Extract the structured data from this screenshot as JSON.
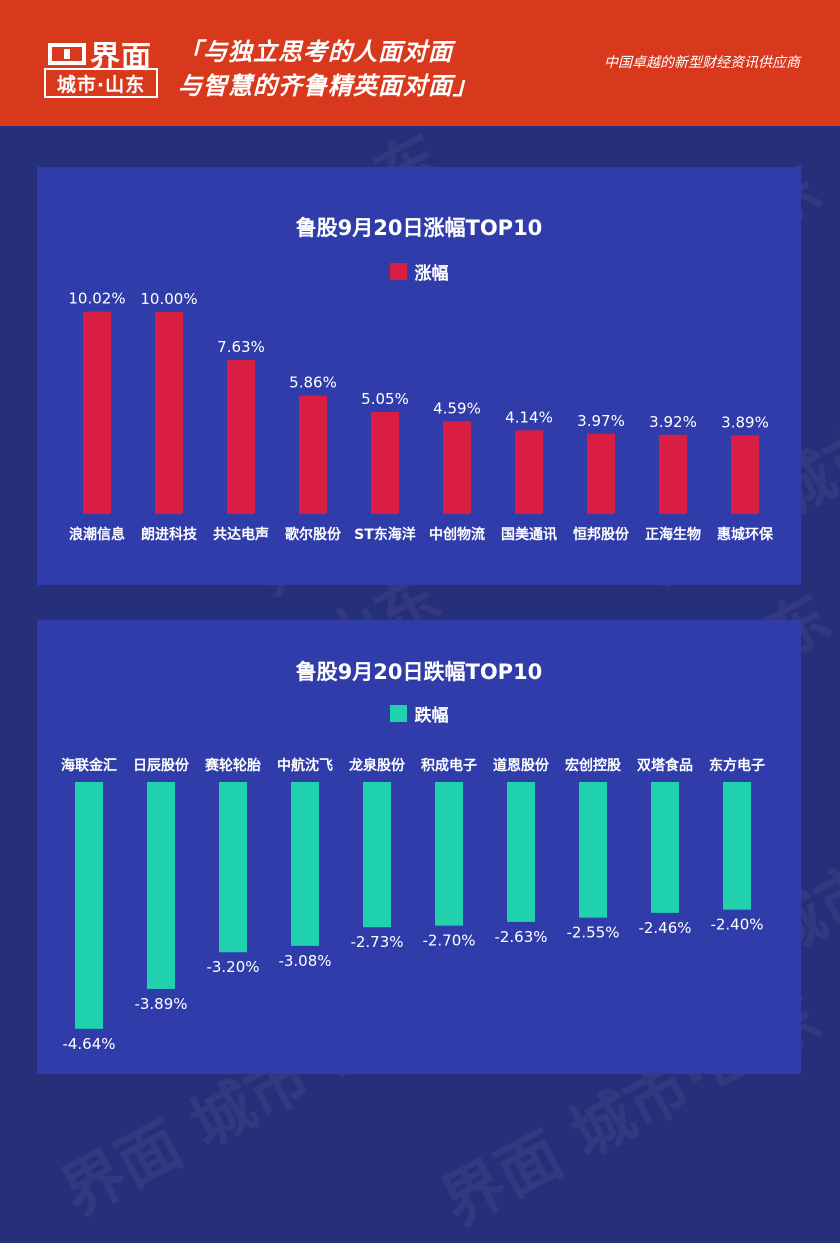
{
  "header": {
    "logo_main": "界面",
    "logo_sub": "城市·山东",
    "slogan_line1": "「与独立思考的人面对面",
    "slogan_line2": "与智慧的齐鲁精英面对面」",
    "tagline": "中国卓越的新型财经资讯供应商"
  },
  "watermark_text": "界面 城市·山东",
  "colors": {
    "header_bg": "#d8391c",
    "page_bg": "#26307a",
    "panel_bg": "#2f3ca9",
    "gain_bar": "#d91d43",
    "loss_bar": "#1fd1ad"
  },
  "chart_data": [
    {
      "type": "bar",
      "title": "鲁股9月20日涨幅TOP10",
      "series": [
        {
          "name": "涨幅",
          "values": [
            10.02,
            10.0,
            7.63,
            5.86,
            5.05,
            4.59,
            4.14,
            3.97,
            3.92,
            3.89
          ]
        }
      ],
      "categories": [
        "浪潮信息",
        "朗进科技",
        "共达电声",
        "歌尔股份",
        "ST东海洋",
        "中创物流",
        "国美通讯",
        "恒邦股份",
        "正海生物",
        "惠城环保"
      ],
      "labels": [
        "10.02%",
        "10.00%",
        "7.63%",
        "5.86%",
        "5.05%",
        "4.59%",
        "4.14%",
        "3.97%",
        "3.92%",
        "3.89%"
      ],
      "legend": "top",
      "grid": false
    },
    {
      "type": "bar",
      "title": "鲁股9月20日跌幅TOP10",
      "series": [
        {
          "name": "跌幅",
          "values": [
            -4.64,
            -3.89,
            -3.2,
            -3.08,
            -2.73,
            -2.7,
            -2.63,
            -2.55,
            -2.46,
            -2.4
          ]
        }
      ],
      "categories": [
        "海联金汇",
        "日辰股份",
        "赛轮轮胎",
        "中航沈飞",
        "龙泉股份",
        "积成电子",
        "道恩股份",
        "宏创控股",
        "双塔食品",
        "东方电子"
      ],
      "labels": [
        "-4.64%",
        "-3.89%",
        "-3.20%",
        "-3.08%",
        "-2.73%",
        "-2.70%",
        "-2.63%",
        "-2.55%",
        "-2.46%",
        "-2.40%"
      ],
      "legend": "top",
      "grid": false
    }
  ]
}
